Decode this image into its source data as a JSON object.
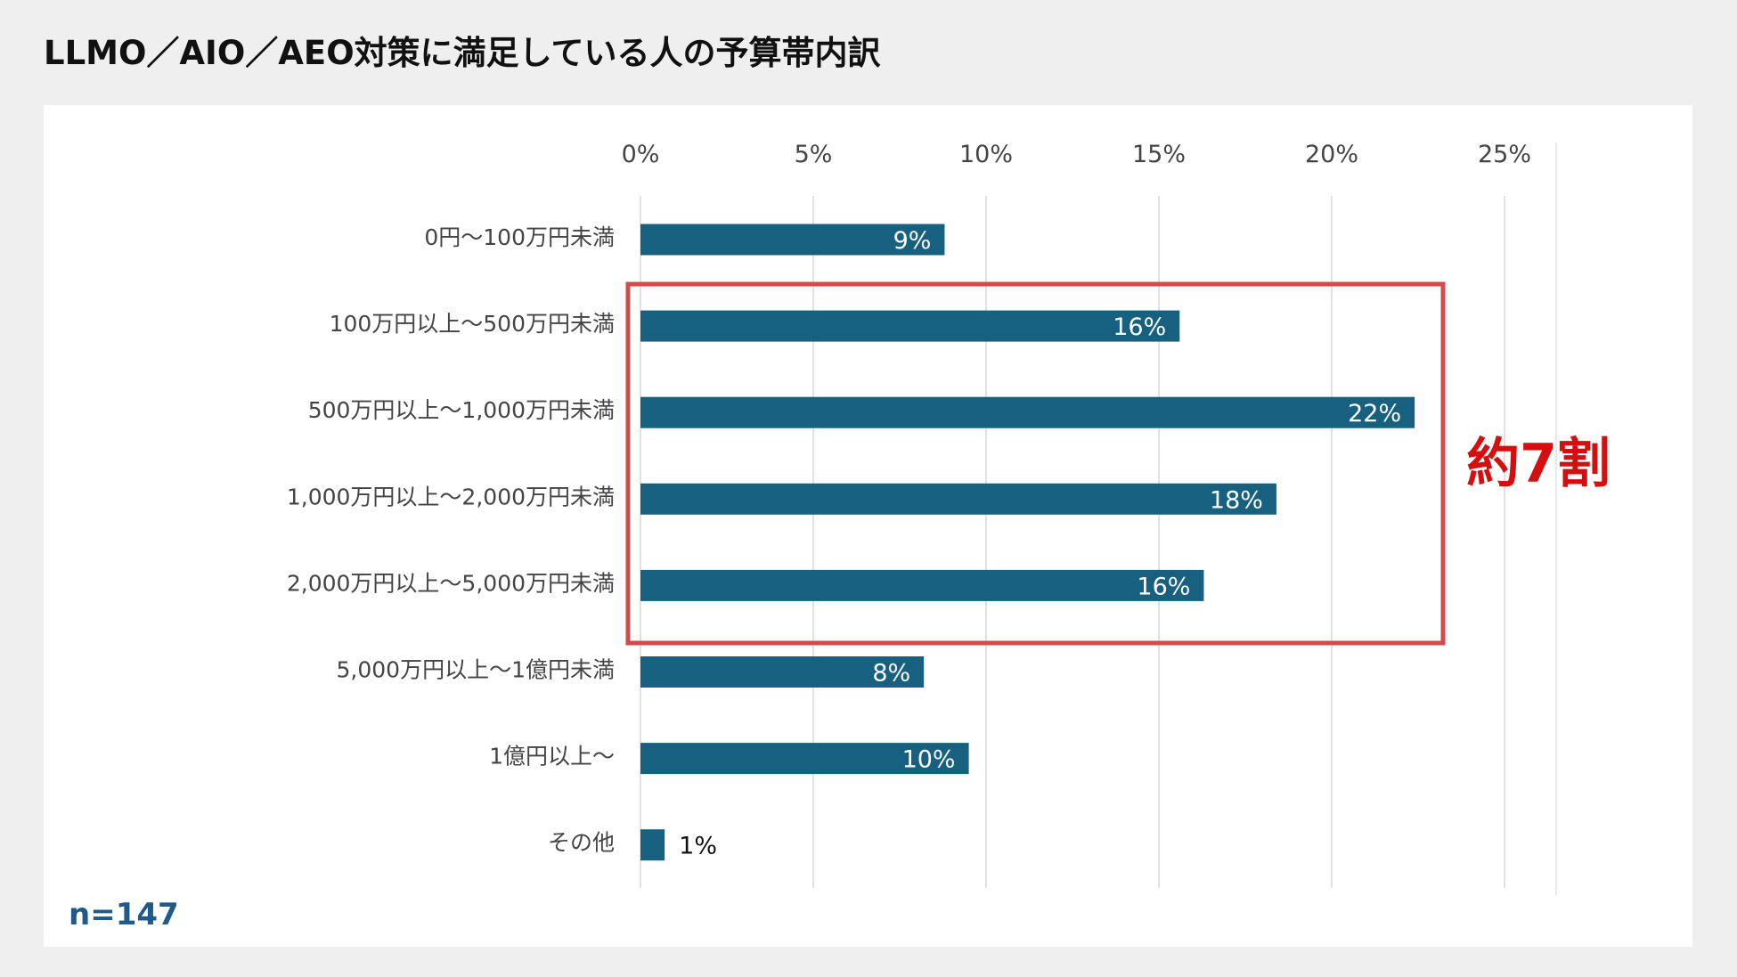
{
  "title": "LLMO／AIO／AEO対策に満足している人の予算帯内訳",
  "sample_size": "n=147",
  "annotation": "約7割",
  "colors": {
    "bar": "#17607f",
    "highlight_box": "#d24b4b",
    "annotation": "#d40f0f",
    "n_label": "#1f5a8a"
  },
  "chart_data": {
    "type": "bar",
    "orientation": "horizontal",
    "title": "LLMO／AIO／AEO対策に満足している人の予算帯内訳",
    "categories": [
      "0円〜100万円未満",
      "100万円以上〜500万円未満",
      "500万円以上〜1,000万円未満",
      "1,000万円以上〜2,000万円未満",
      "2,000万円以上〜5,000万円未満",
      "5,000万円以上〜1億円未満",
      "1億円以上〜",
      "その他"
    ],
    "values": [
      8.8,
      15.6,
      22.4,
      18.4,
      16.3,
      8.2,
      9.5,
      0.7
    ],
    "data_labels": [
      "9%",
      "16%",
      "22%",
      "18%",
      "16%",
      "8%",
      "10%",
      "1%"
    ],
    "xlim": [
      0,
      25
    ],
    "x_ticks": [
      "0%",
      "5%",
      "10%",
      "15%",
      "20%",
      "25%"
    ],
    "axis_position": "top",
    "grid": true,
    "highlight": {
      "categories_from": 1,
      "categories_to": 4,
      "label": "約7割"
    }
  }
}
